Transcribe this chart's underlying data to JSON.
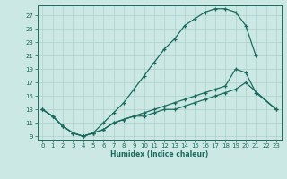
{
  "xlabel": "Humidex (Indice chaleur)",
  "bg_color": "#cce8e4",
  "line_color": "#1a6b5e",
  "grid_color": "#aed0cb",
  "xlim": [
    -0.5,
    23.5
  ],
  "ylim": [
    8.5,
    28.5
  ],
  "xticks": [
    0,
    1,
    2,
    3,
    4,
    5,
    6,
    7,
    8,
    9,
    10,
    11,
    12,
    13,
    14,
    15,
    16,
    17,
    18,
    19,
    20,
    21,
    22,
    23
  ],
  "yticks": [
    9,
    11,
    13,
    15,
    17,
    19,
    21,
    23,
    25,
    27
  ],
  "curve1_x": [
    0,
    1,
    2,
    3,
    4,
    5,
    6,
    7,
    8,
    9,
    10,
    11,
    12,
    13,
    14,
    15,
    16,
    17,
    18,
    19,
    20,
    21
  ],
  "curve1_y": [
    13,
    12,
    10.5,
    9.5,
    9,
    9.5,
    11,
    12.5,
    14,
    16,
    18,
    20,
    22,
    23.5,
    25.5,
    26.5,
    27.5,
    28,
    28,
    27.5,
    25.5,
    21
  ],
  "curve2_x": [
    0,
    1,
    2,
    3,
    4,
    5,
    6,
    7,
    8,
    9,
    10,
    11,
    12,
    13,
    14,
    15,
    16,
    17,
    18,
    19,
    20,
    21,
    23
  ],
  "curve2_y": [
    13,
    12,
    10.5,
    9.5,
    9,
    9.5,
    10,
    11,
    11.5,
    12,
    12.5,
    13,
    13.5,
    14,
    14.5,
    15,
    15.5,
    16,
    16.5,
    19,
    18.5,
    15.5,
    13
  ],
  "curve3_x": [
    0,
    1,
    2,
    3,
    4,
    5,
    6,
    7,
    8,
    9,
    10,
    11,
    12,
    13,
    14,
    15,
    16,
    17,
    18,
    19,
    20,
    23
  ],
  "curve3_y": [
    13,
    12,
    10.5,
    9.5,
    9,
    9.5,
    10,
    11,
    11.5,
    12,
    12,
    12.5,
    13,
    13,
    13.5,
    14,
    14.5,
    15,
    15.5,
    16,
    17,
    13
  ]
}
